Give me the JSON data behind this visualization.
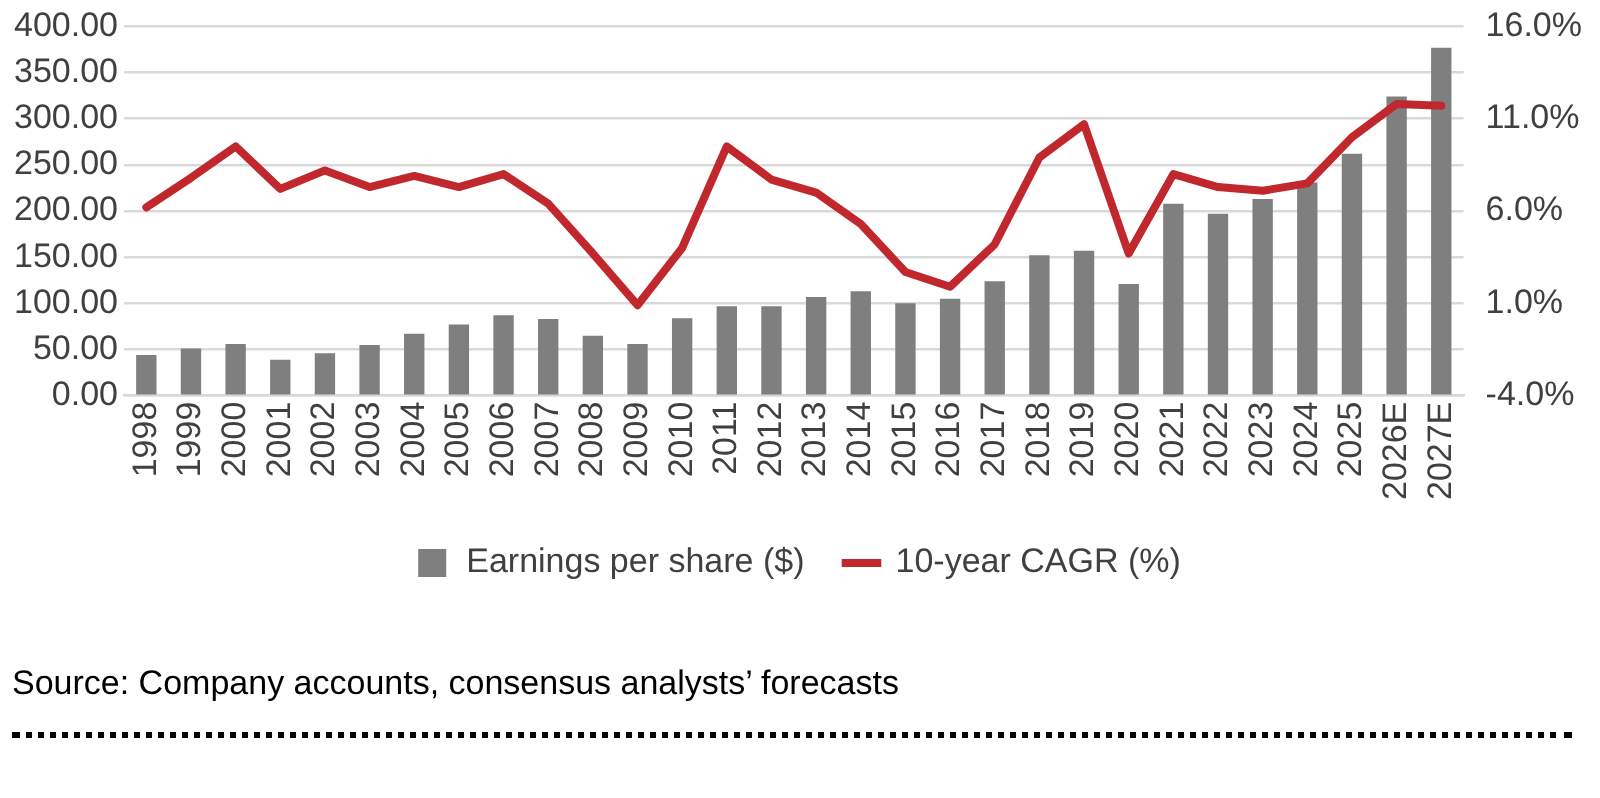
{
  "chart_data": {
    "type": "bar",
    "categories": [
      "1998",
      "1999",
      "2000",
      "2001",
      "2002",
      "2003",
      "2004",
      "2005",
      "2006",
      "2007",
      "2008",
      "2009",
      "2010",
      "2011",
      "2012",
      "2013",
      "2014",
      "2015",
      "2016",
      "2017",
      "2018",
      "2019",
      "2020",
      "2021",
      "2022",
      "2023",
      "2024",
      "2025",
      "2026E",
      "2027E"
    ],
    "series": [
      {
        "name": "Earnings per share ($)",
        "color": "#7f7f7f",
        "values": [
          44,
          51,
          56,
          39,
          46,
          55,
          67,
          77,
          87,
          83,
          65,
          56,
          84,
          97,
          97,
          107,
          113,
          100,
          105,
          124,
          152,
          157,
          121,
          208,
          197,
          213,
          231,
          262,
          324,
          377
        ]
      },
      {
        "name": "10-year CAGR (%)",
        "type": "line",
        "axis": "y2",
        "color": "#c0282d",
        "values": [
          6.2,
          7.8,
          9.5,
          7.2,
          8.2,
          7.3,
          7.9,
          7.3,
          8.0,
          6.4,
          3.7,
          0.9,
          4.0,
          9.5,
          7.7,
          7.0,
          5.3,
          2.7,
          1.9,
          4.2,
          8.9,
          10.7,
          3.7,
          8.0,
          7.3,
          7.1,
          7.5,
          10.0,
          11.8,
          11.7
        ]
      }
    ],
    "ylim": [
      0,
      400
    ],
    "yticks": [
      {
        "value": 0,
        "label": "0.00"
      },
      {
        "value": 50,
        "label": "50.00"
      },
      {
        "value": 100,
        "label": "100.00"
      },
      {
        "value": 150,
        "label": "150.00"
      },
      {
        "value": 200,
        "label": "200.00"
      },
      {
        "value": 250,
        "label": "250.00"
      },
      {
        "value": 300,
        "label": "300.00"
      },
      {
        "value": 350,
        "label": "350.00"
      },
      {
        "value": 400,
        "label": "400.00"
      }
    ],
    "y2lim": [
      -4,
      16
    ],
    "y2ticks": [
      {
        "value": -4,
        "label": "-4.0%"
      },
      {
        "value": 1,
        "label": "1.0%"
      },
      {
        "value": 6,
        "label": "6.0%"
      },
      {
        "value": 11,
        "label": "11.0%"
      },
      {
        "value": 16,
        "label": "16.0%"
      }
    ],
    "grid": "y",
    "legend": "bottom",
    "marker": "none",
    "annotations": [
      "Source: Company accounts, consensus analysts’ forecasts"
    ]
  }
}
